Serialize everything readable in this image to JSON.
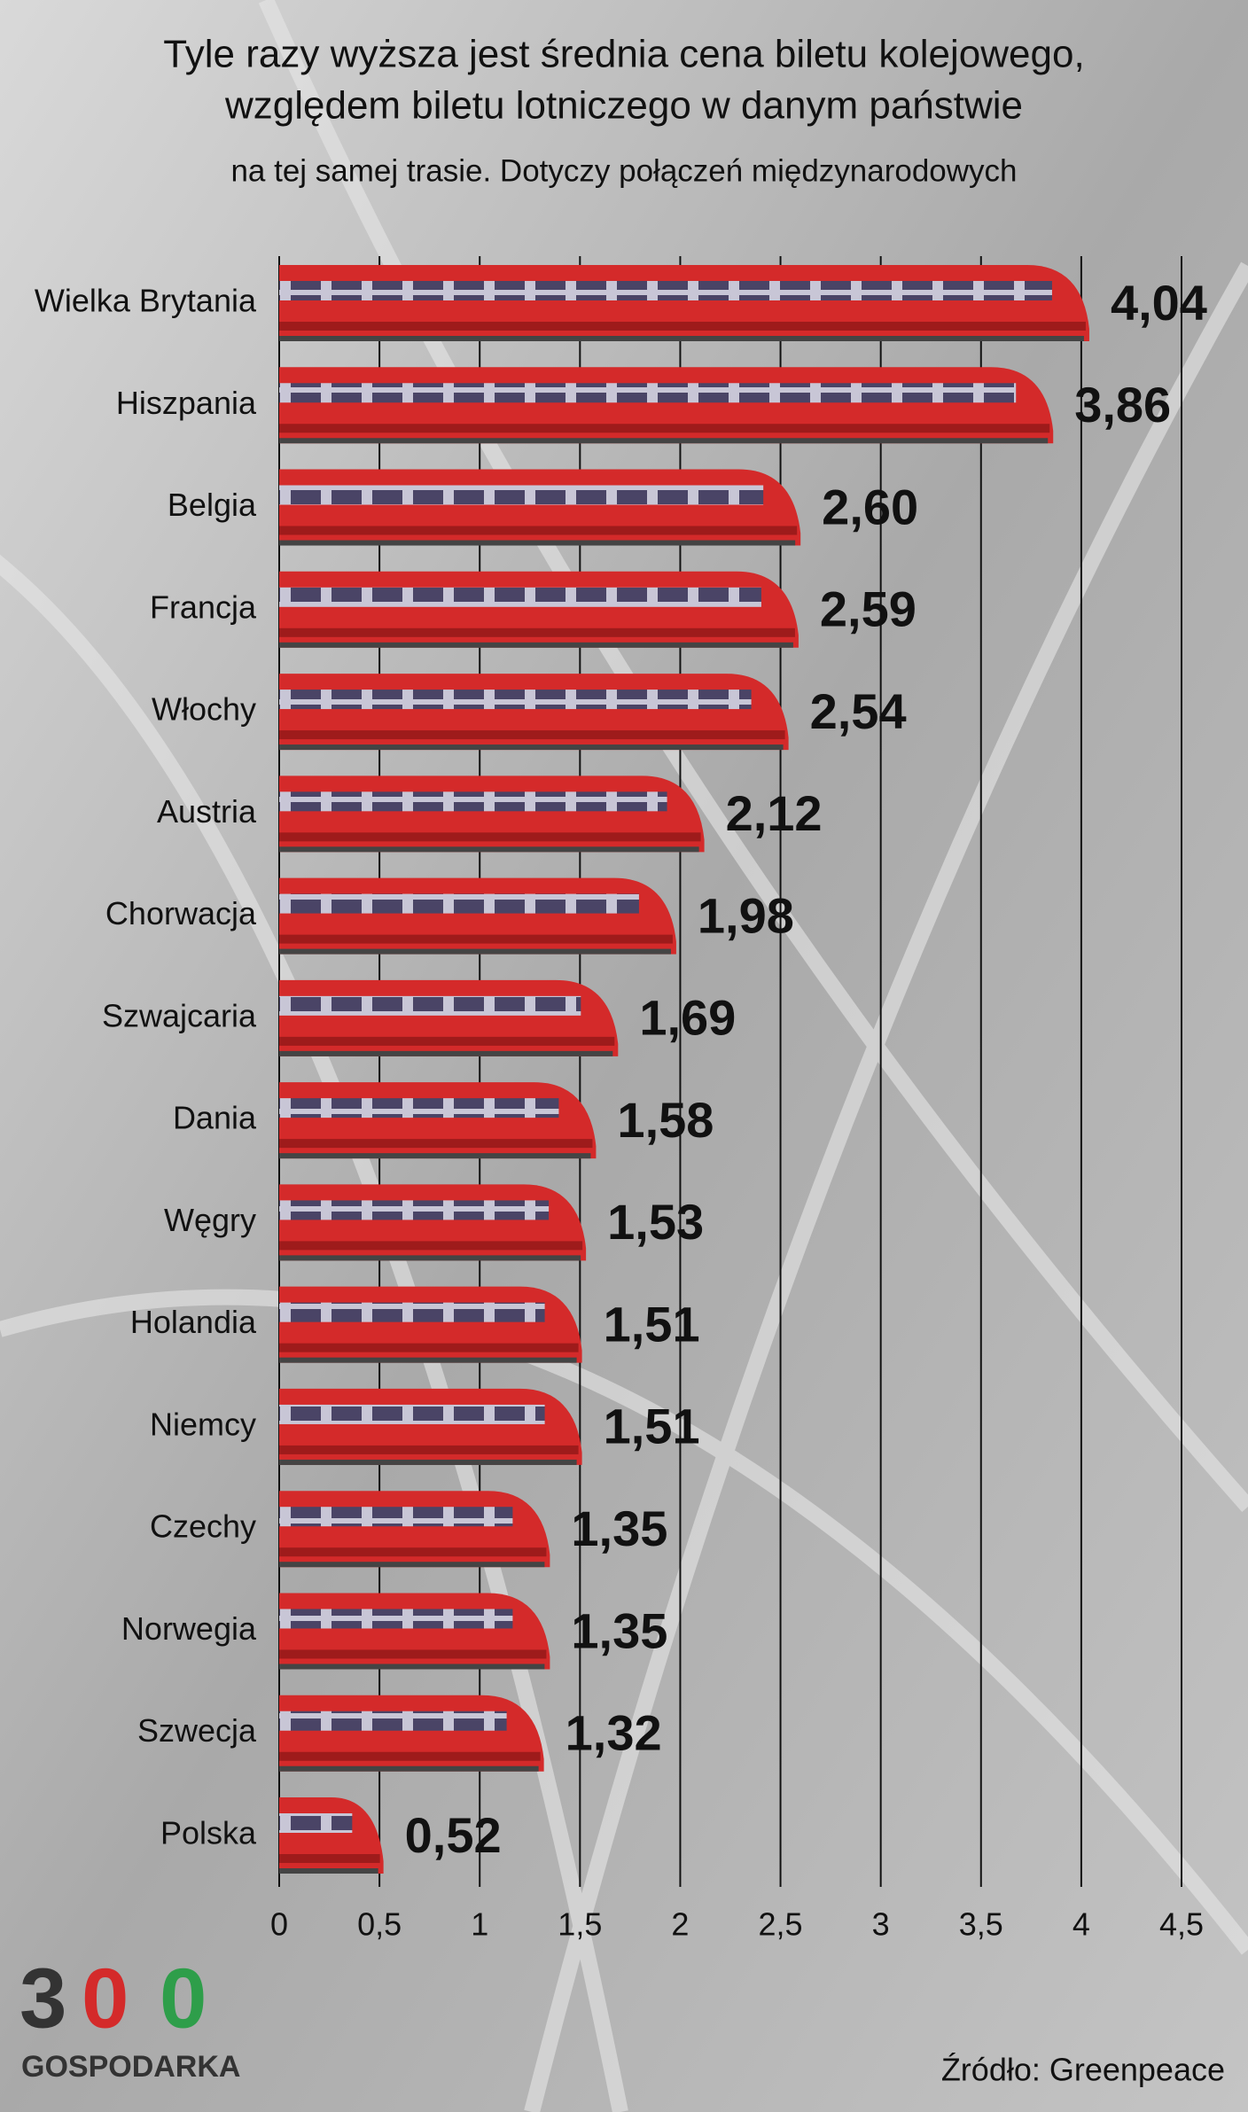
{
  "chart_data": {
    "type": "bar",
    "orientation": "horizontal",
    "title": "Tyle razy wyższa jest średnia cena biletu kolejowego,",
    "title_line2": "względem biletu lotniczego w danym państwie",
    "subtitle": "na tej samej trasie. Dotyczy połączeń międzynarodowych",
    "categories": [
      "Wielka Brytania",
      "Hiszpania",
      "Belgia",
      "Francja",
      "Włochy",
      "Austria",
      "Chorwacja",
      "Szwajcaria",
      "Dania",
      "Węgry",
      "Holandia",
      "Niemcy",
      "Czechy",
      "Norwegia",
      "Szwecja",
      "Polska"
    ],
    "values": [
      4.04,
      3.86,
      2.6,
      2.59,
      2.54,
      2.12,
      1.98,
      1.69,
      1.58,
      1.53,
      1.51,
      1.51,
      1.35,
      1.35,
      1.32,
      0.52
    ],
    "value_labels": [
      "4,04",
      "3,86",
      "2,60",
      "2,59",
      "2,54",
      "2,12",
      "1,98",
      "1,69",
      "1,58",
      "1,53",
      "1,51",
      "1,51",
      "1,35",
      "1,35",
      "1,32",
      "0,52"
    ],
    "color": "#d42a2a",
    "xlim": [
      0,
      4.5
    ],
    "xticks": [
      0,
      {
        "value": 0.5,
        "label": "0,5"
      },
      1,
      {
        "value": 1.5,
        "label": "1,5"
      },
      2,
      {
        "value": 2.5,
        "label": "2,5"
      },
      3,
      {
        "value": 3.5,
        "label": "3,5"
      },
      4,
      {
        "value": 4.5,
        "label": "4,5"
      }
    ],
    "grid": true,
    "source": "Źródło: Greenpeace",
    "logo_digits": [
      "3",
      "0",
      "0"
    ],
    "logo_name": "GOSPODARKA"
  }
}
